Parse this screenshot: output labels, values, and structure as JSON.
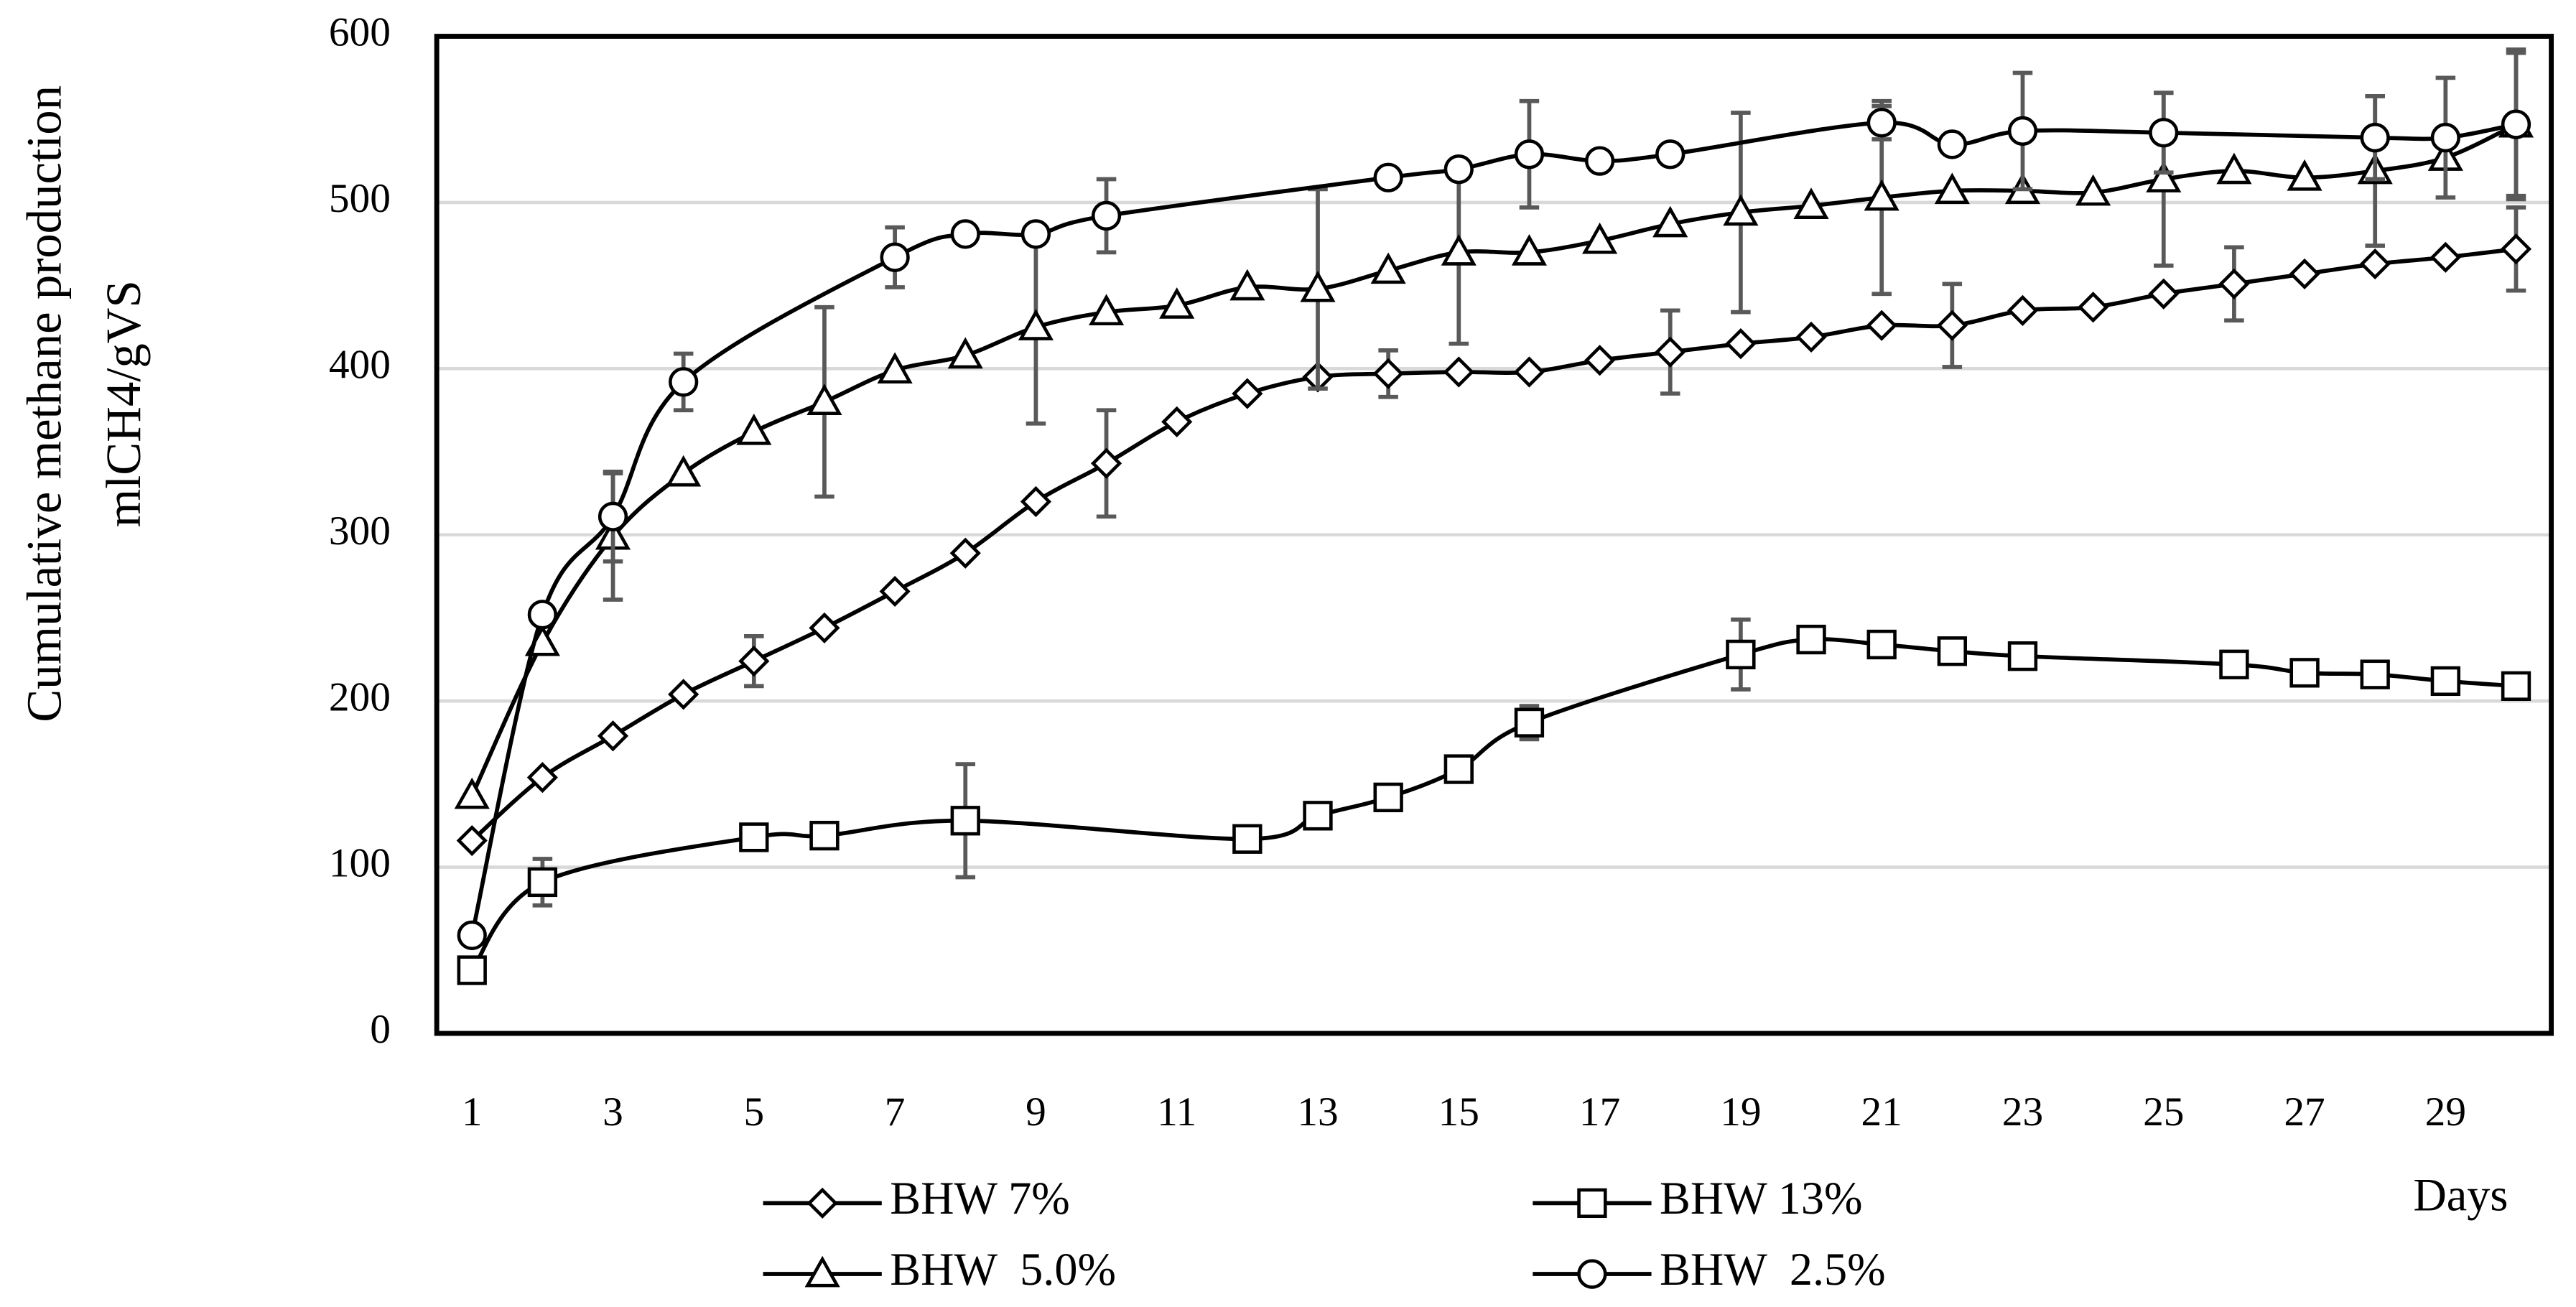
{
  "chart_data": {
    "type": "line",
    "xlabel": "Days",
    "ylabel": [
      "Cumulative methane production",
      "mlCH4/gVS"
    ],
    "xlim": [
      0.5,
      30.5
    ],
    "xticks": [
      1,
      3,
      5,
      7,
      9,
      11,
      13,
      15,
      17,
      19,
      21,
      23,
      25,
      27,
      29
    ],
    "ylim": [
      0,
      600
    ],
    "yticks": [
      0,
      100,
      200,
      300,
      400,
      500,
      600
    ],
    "grid": true,
    "legend": "bottom",
    "series": [
      {
        "name": "BHW 7%",
        "color": "#000000",
        "marker": "diamond",
        "x": [
          1,
          2,
          3,
          4,
          5,
          6,
          7,
          8,
          9,
          10,
          11,
          12,
          13,
          14,
          15,
          16,
          17,
          18,
          19,
          20,
          21,
          22,
          23,
          24,
          25,
          26,
          27,
          28,
          29,
          30
        ],
        "values": [
          116,
          154,
          179,
          204,
          224,
          244,
          266,
          289,
          320,
          343,
          368,
          385,
          395,
          397,
          398,
          398,
          405,
          410,
          415,
          419,
          426,
          426,
          435,
          437,
          445,
          451,
          457,
          463,
          467,
          472
        ],
        "errors": [
          null,
          null,
          null,
          null,
          15,
          null,
          null,
          null,
          null,
          32,
          null,
          null,
          null,
          14,
          null,
          null,
          null,
          25,
          null,
          null,
          null,
          25,
          null,
          null,
          null,
          22,
          null,
          null,
          null,
          25
        ]
      },
      {
        "name": "BHW 13%",
        "color": "#000000",
        "marker": "square",
        "x": [
          1,
          2,
          5,
          6,
          8,
          12,
          13,
          14,
          15,
          16,
          19,
          20,
          21,
          22,
          23,
          26,
          27,
          28,
          29,
          30
        ],
        "values": [
          38,
          91,
          118,
          119,
          128,
          117,
          131,
          142,
          159,
          187,
          228,
          237,
          234,
          230,
          227,
          222,
          217,
          216,
          212,
          209
        ],
        "errors": [
          null,
          14,
          null,
          null,
          34,
          null,
          null,
          null,
          null,
          10,
          21,
          null,
          null,
          null,
          null,
          null,
          null,
          null,
          null,
          null
        ]
      },
      {
        "name": "BHW  5.0%",
        "color": "#000000",
        "marker": "triangle",
        "x": [
          1,
          2,
          3,
          4,
          5,
          6,
          7,
          8,
          9,
          10,
          11,
          12,
          13,
          14,
          15,
          16,
          17,
          18,
          19,
          20,
          21,
          22,
          23,
          24,
          25,
          26,
          27,
          28,
          29,
          30
        ],
        "values": [
          143,
          235,
          299,
          337,
          362,
          380,
          399,
          408,
          425,
          434,
          438,
          449,
          448,
          459,
          470,
          470,
          477,
          487,
          494,
          498,
          503,
          507,
          507,
          506,
          514,
          519,
          515,
          519,
          527,
          547
        ],
        "errors": [
          null,
          null,
          38,
          null,
          null,
          57,
          null,
          null,
          58,
          null,
          null,
          null,
          60,
          null,
          55,
          null,
          null,
          null,
          60,
          null,
          58,
          null,
          null,
          null,
          52,
          null,
          null,
          45,
          null,
          45
        ]
      },
      {
        "name": "BHW  2.5%",
        "color": "#000000",
        "marker": "circle",
        "x": [
          1,
          2,
          3,
          4,
          7,
          8,
          9,
          10,
          14,
          15,
          16,
          17,
          18,
          21,
          22,
          23,
          25,
          28,
          29,
          30
        ],
        "values": [
          59,
          252,
          311,
          392,
          467,
          481,
          481,
          492,
          515,
          520,
          529,
          525,
          529,
          548,
          535,
          543,
          542,
          539,
          539,
          547
        ],
        "errors": [
          null,
          null,
          27,
          17,
          18,
          null,
          null,
          22,
          null,
          null,
          32,
          null,
          null,
          10,
          null,
          35,
          24,
          25,
          36,
          43
        ]
      }
    ]
  }
}
